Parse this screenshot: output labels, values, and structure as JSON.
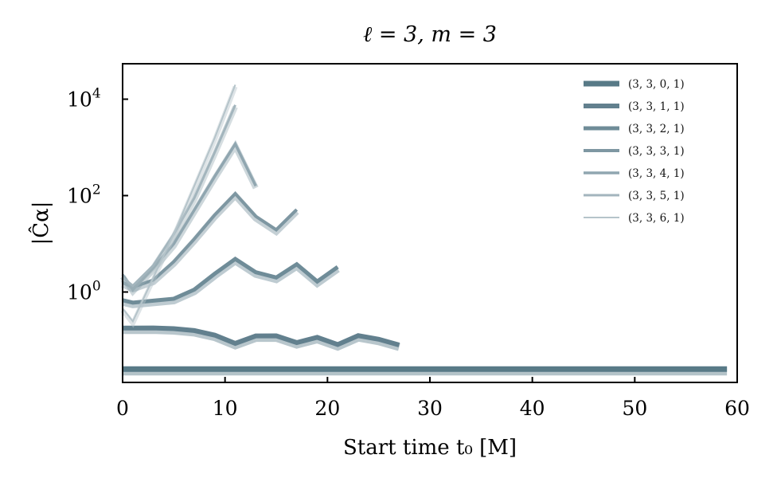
{
  "chart_data": {
    "type": "line",
    "title": "ℓ = 3, m = 3",
    "xlabel": "Start time t₀ [M]",
    "ylabel": "|Ĉα|",
    "xlim": [
      0,
      60
    ],
    "ylim_log10": [
      -1.9,
      4.75
    ],
    "yscale": "log",
    "grid": false,
    "legend_position": "top-right",
    "x_ticks": [
      0,
      10,
      20,
      30,
      40,
      50,
      60
    ],
    "y_ticks": [
      {
        "exp": 0,
        "label": "10",
        "sup": "0"
      },
      {
        "exp": 2,
        "label": "10",
        "sup": "2"
      },
      {
        "exp": 4,
        "label": "10",
        "sup": "4"
      }
    ],
    "series": [
      {
        "name": "(3, 3, 0, 1)",
        "color": "#587a87",
        "x": [
          0,
          59
        ],
        "log10_y": [
          -1.6,
          -1.6
        ]
      },
      {
        "name": "(3, 3, 1, 1)",
        "color": "#62808e",
        "x": [
          0,
          1,
          3,
          5,
          7,
          9,
          11,
          13,
          15,
          17,
          19,
          21,
          23,
          25,
          27
        ],
        "log10_y": [
          -0.747,
          -0.747,
          -0.745,
          -0.76,
          -0.8,
          -0.895,
          -1.066,
          -0.912,
          -0.91,
          -1.05,
          -0.94,
          -1.09,
          -0.905,
          -0.98,
          -1.1
        ]
      },
      {
        "name": "(3, 3, 2, 1)",
        "color": "#6f8c98",
        "x": [
          0,
          1,
          3,
          5,
          7,
          9,
          11,
          13,
          15,
          17,
          19,
          21
        ],
        "log10_y": [
          -0.17,
          -0.22,
          -0.18,
          -0.14,
          0.05,
          0.38,
          0.686,
          0.41,
          0.3,
          0.575,
          0.218,
          0.52
        ]
      },
      {
        "name": "(3, 3, 3, 1)",
        "color": "#7e97a2",
        "x": [
          0,
          1,
          3,
          5,
          7,
          9,
          11,
          13,
          15,
          17
        ],
        "log10_y": [
          0.2,
          0.1,
          0.25,
          0.63,
          1.1,
          1.6,
          2.04,
          1.57,
          1.29,
          1.71
        ]
      },
      {
        "name": "(3, 3, 4, 1)",
        "color": "#90a6b0",
        "x": [
          0,
          1,
          3,
          5,
          7,
          9,
          11,
          13
        ],
        "log10_y": [
          0.36,
          0.05,
          0.5,
          1.0,
          1.7,
          2.4,
          3.07,
          2.2
        ]
      },
      {
        "name": "(3, 3, 5, 1)",
        "color": "#a3b5bd",
        "x": [
          0,
          1,
          3,
          5,
          7,
          9,
          11
        ],
        "log10_y": [
          0.3,
          0.13,
          0.55,
          1.2,
          1.95,
          2.9,
          3.88
        ]
      },
      {
        "name": "(3, 3, 6, 1)",
        "color": "#b5c4ca",
        "x": [
          0,
          1,
          3,
          5,
          7,
          9,
          11
        ],
        "log10_y": [
          -0.34,
          -0.61,
          0.3,
          1.2,
          2.2,
          3.2,
          4.3
        ]
      }
    ]
  }
}
